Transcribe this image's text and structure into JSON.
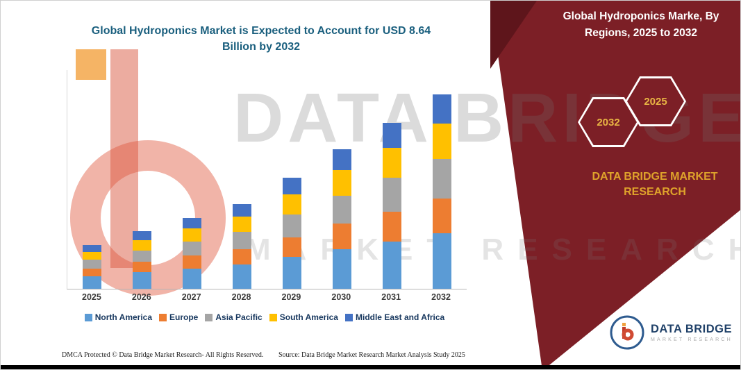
{
  "page": {
    "footer_dmca": "DMCA Protected © Data Bridge Market Research-  All Rights Reserved.",
    "footer_source": "Source: Data Bridge Market Research  Market Analysis Study 2025"
  },
  "right_panel": {
    "title_line1": "Global Hydroponics Marke, By",
    "title_line2": "Regions, 2025 to 2032",
    "hexagon_left": "2032",
    "hexagon_right": "2025",
    "brand_line1": "DATA BRIDGE MARKET",
    "brand_line2": "RESEARCH",
    "band_color": "#7C1F26",
    "accent_gold": "#DFA32B"
  },
  "watermark": {
    "line1": "DATA BRIDGE",
    "line2": "MARKET RESEARCH"
  },
  "footer_logo": {
    "name": "DATA BRIDGE",
    "tagline": "MARKET RESEARCH"
  },
  "chart_data": {
    "type": "bar",
    "stacked": true,
    "title": "Global Hydroponics Market is Expected to Account for USD 8.64 Billion by 2032",
    "unit": "USD Billion",
    "xlabel": "",
    "ylabel": "",
    "ylim": [
      0,
      9
    ],
    "gridlines": false,
    "legend_position": "bottom",
    "categories": [
      "2025",
      "2026",
      "2027",
      "2028",
      "2029",
      "2030",
      "2031",
      "2032"
    ],
    "series": [
      {
        "name": "North America",
        "color": "#5B9BD5",
        "values": [
          0.55,
          0.73,
          0.9,
          1.08,
          1.41,
          1.77,
          2.11,
          2.47
        ]
      },
      {
        "name": "Europe",
        "color": "#ED7D31",
        "values": [
          0.35,
          0.46,
          0.57,
          0.68,
          0.89,
          1.12,
          1.33,
          1.56
        ]
      },
      {
        "name": "Asia Pacific",
        "color": "#A5A5A5",
        "values": [
          0.4,
          0.52,
          0.64,
          0.77,
          1.0,
          1.26,
          1.5,
          1.76
        ]
      },
      {
        "name": "South America",
        "color": "#FFC000",
        "values": [
          0.35,
          0.46,
          0.57,
          0.68,
          0.89,
          1.12,
          1.33,
          1.56
        ]
      },
      {
        "name": "Middle East and Africa",
        "color": "#4472C4",
        "values": [
          0.29,
          0.39,
          0.47,
          0.56,
          0.75,
          0.93,
          1.11,
          1.29
        ]
      }
    ],
    "totals": [
      1.94,
      2.56,
      3.15,
      3.77,
      4.94,
      6.2,
      7.38,
      8.64
    ]
  }
}
